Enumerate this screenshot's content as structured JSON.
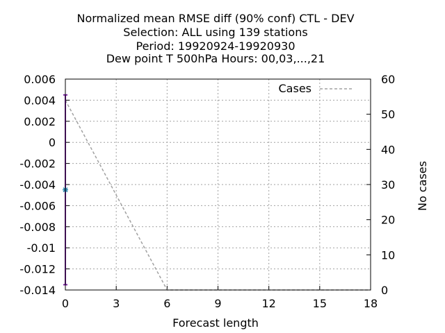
{
  "chart_data": {
    "type": "line",
    "title_lines": [
      "Normalized mean RMSE diff (90% conf) CTL - DEV",
      "Selection: ALL using   139 stations",
      "Period: 19920924-19920930",
      "Dew point T 500hPa   Hours:  00,03,...,21"
    ],
    "xlabel": "Forecast length",
    "ylabel": "",
    "y2label": "No cases",
    "xlim": [
      0,
      18
    ],
    "ylim": [
      -0.014,
      0.006
    ],
    "y2lim": [
      0,
      60
    ],
    "xticks": [
      "0",
      "3",
      "6",
      "9",
      "12",
      "15",
      "18"
    ],
    "yticks": [
      "0.006",
      "0.004",
      "0.002",
      "0",
      "-0.002",
      "-0.004",
      "-0.006",
      "-0.008",
      "-0.01",
      "-0.012",
      "-0.014"
    ],
    "y2ticks": [
      "60",
      "50",
      "40",
      "30",
      "20",
      "10",
      "0"
    ],
    "grid": true,
    "legend_position": "top-right",
    "series": [
      {
        "name": "Cases",
        "axis": "y2",
        "style": "dashed",
        "color": "#a0a0a0",
        "x": [
          0,
          6,
          18
        ],
        "y": [
          54,
          0,
          0
        ]
      }
    ],
    "errorbar": {
      "x": 0,
      "mean": -0.0045,
      "low": -0.0135,
      "high": 0.0045,
      "color": "#7a1fa2",
      "marker_color": "#1f7ea8"
    }
  }
}
